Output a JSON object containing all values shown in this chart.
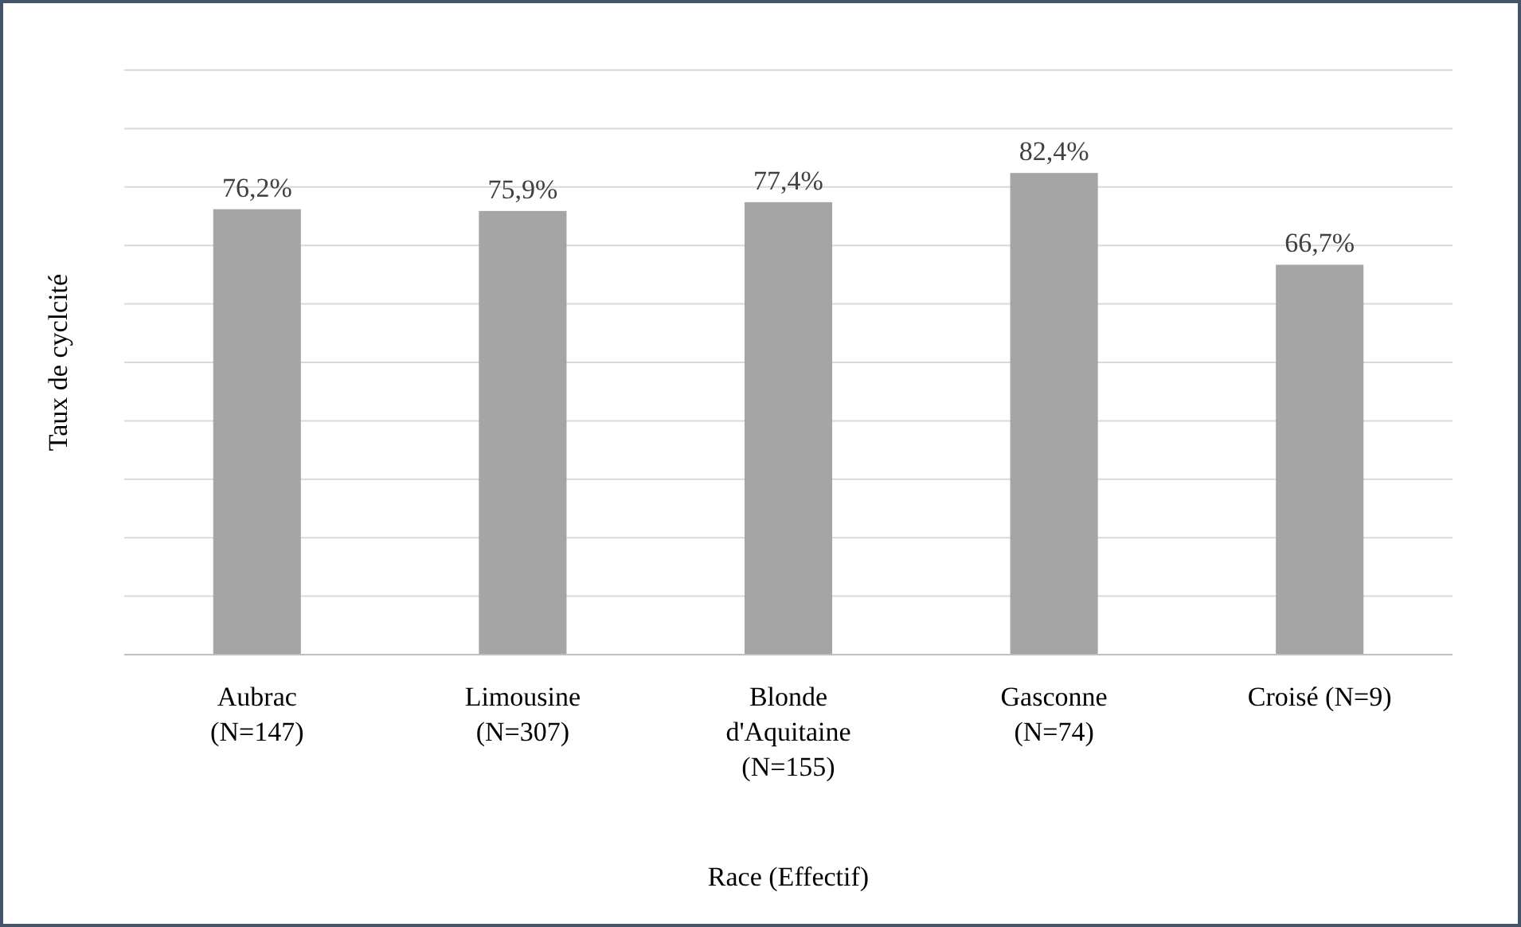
{
  "chart_data": {
    "type": "bar",
    "xlabel": "Race (Effectif)",
    "ylabel": "Taux de cyclcité",
    "categories": [
      "Aubrac (N=147)",
      "Limousine (N=307)",
      "Blonde d'Aquitaine (N=155)",
      "Gasconne (N=74)",
      "Croisé (N=9)"
    ],
    "values": [
      76.2,
      75.9,
      77.4,
      82.4,
      66.7
    ],
    "value_labels": [
      "76,2%",
      "75,9%",
      "77,4%",
      "82,4%",
      "66,7%"
    ],
    "color": "#a5a5a5",
    "ylim": [
      0,
      100
    ],
    "yticks": [
      {
        "value": 0,
        "label": null
      },
      {
        "value": 10,
        "label": null
      },
      {
        "value": 20,
        "label": null
      },
      {
        "value": 30,
        "label": null
      },
      {
        "value": 40,
        "label": null
      },
      {
        "value": 50,
        "label": null
      },
      {
        "value": 60,
        "label": null
      },
      {
        "value": 70,
        "label": null
      },
      {
        "value": 80,
        "label": null
      },
      {
        "value": 90,
        "label": null
      },
      {
        "value": 100,
        "label": null
      }
    ],
    "grid": "y",
    "tick_labels": "x"
  }
}
